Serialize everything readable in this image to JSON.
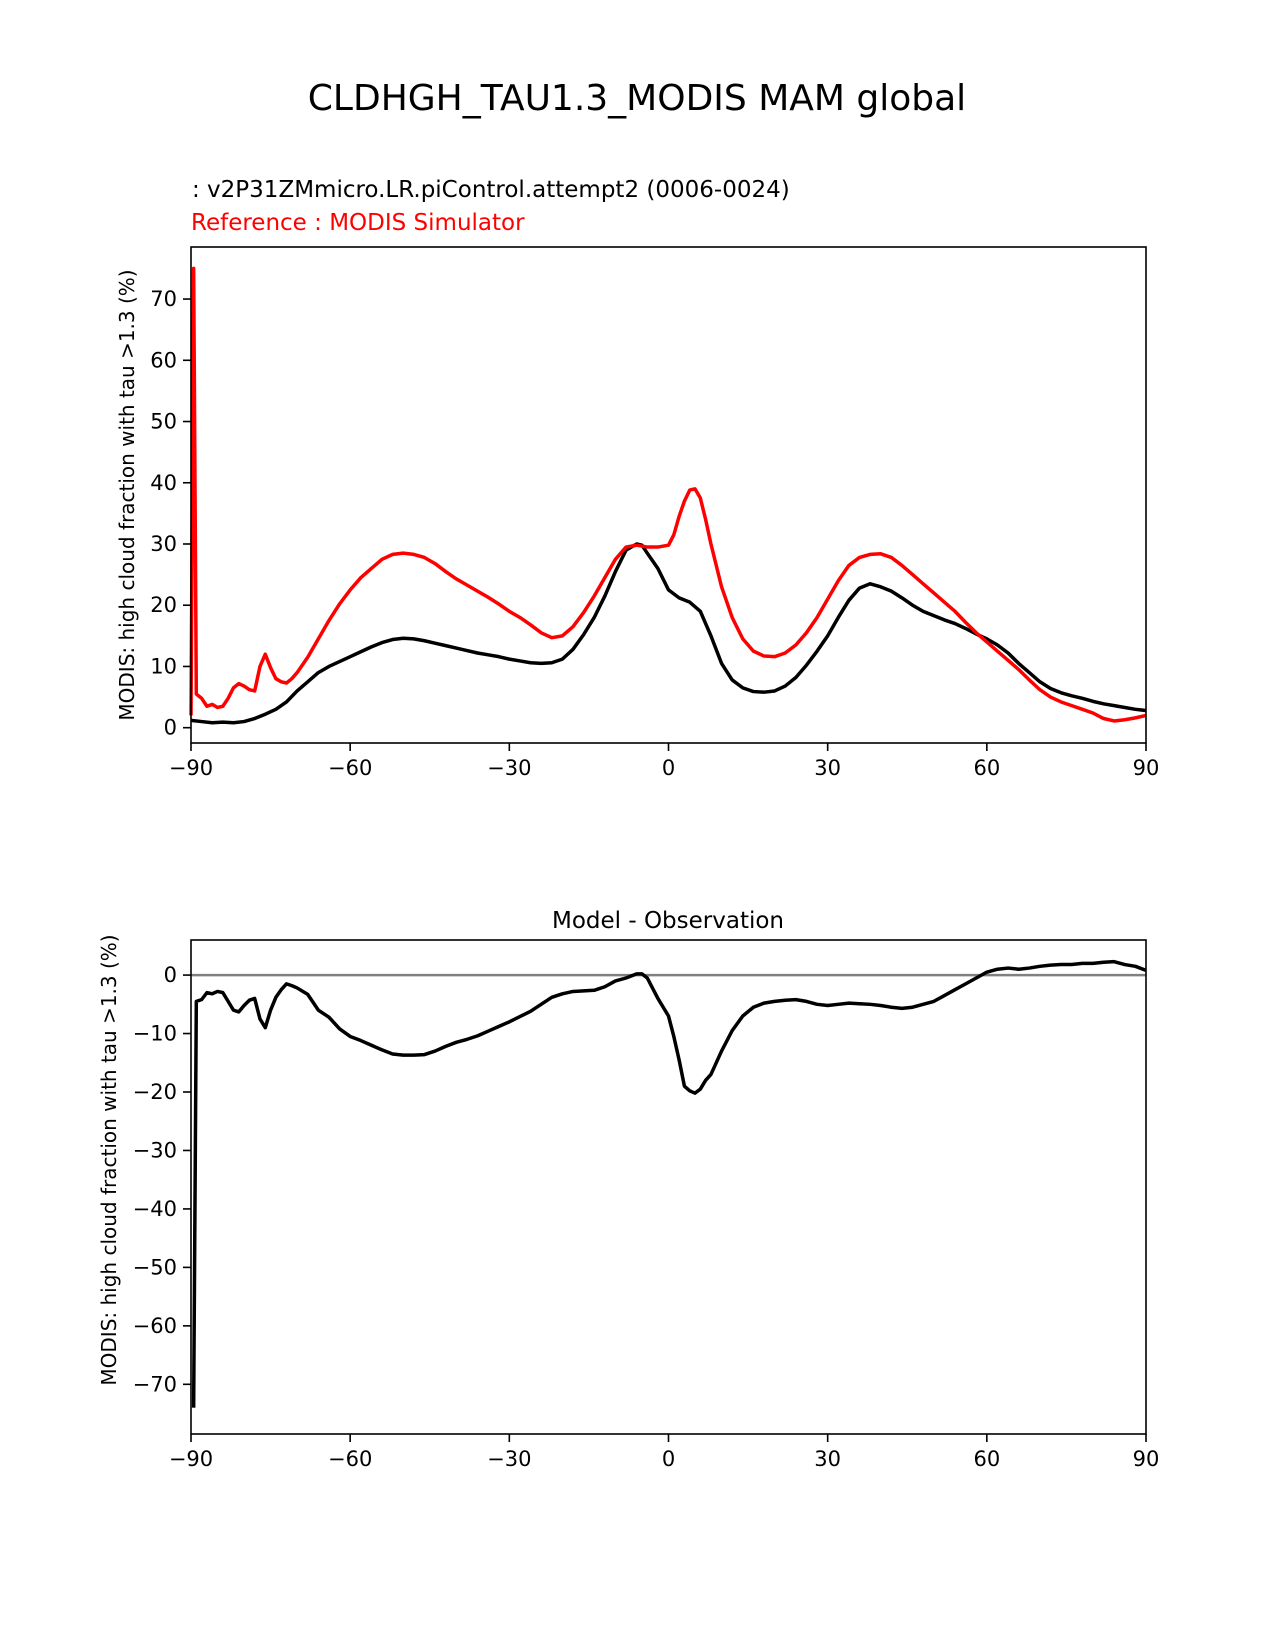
{
  "figure": {
    "suptitle": "CLDHGH_TAU1.3_MODIS MAM global"
  },
  "colors": {
    "model": "#000000",
    "reference": "#ff0000",
    "zero_line": "#808080"
  },
  "chart_data": [
    {
      "type": "line",
      "title": "",
      "test_label": ": v2P31ZMmicro.LR.piControl.attempt2 (0006-0024)",
      "ref_label": "Reference : MODIS Simulator",
      "xlabel": "",
      "ylabel": "MODIS: high cloud fraction with tau >1.3 (%)",
      "xlim": [
        -90,
        90
      ],
      "ylim": [
        -2.5,
        78.5
      ],
      "xticks": [
        -90,
        -60,
        -30,
        0,
        30,
        60,
        90
      ],
      "xtick_labels": [
        "−90",
        "−60",
        "−30",
        "0",
        "30",
        "60",
        "90"
      ],
      "yticks": [
        0,
        10,
        20,
        30,
        40,
        50,
        60,
        70
      ],
      "ytick_labels": [
        "0",
        "10",
        "20",
        "30",
        "40",
        "50",
        "60",
        "70"
      ],
      "grid": false,
      "series": [
        {
          "role": "test",
          "color": "#000000",
          "x": [
            -90,
            -88,
            -86,
            -84,
            -82,
            -80,
            -78,
            -76,
            -74,
            -72,
            -70,
            -68,
            -66,
            -64,
            -62,
            -60,
            -58,
            -56,
            -54,
            -52,
            -50,
            -48,
            -46,
            -44,
            -42,
            -40,
            -38,
            -36,
            -34,
            -32,
            -30,
            -28,
            -26,
            -24,
            -22,
            -20,
            -18,
            -16,
            -14,
            -12,
            -10,
            -8,
            -6,
            -5,
            -4,
            -2,
            0,
            2,
            4,
            6,
            8,
            10,
            12,
            14,
            16,
            18,
            20,
            22,
            24,
            26,
            28,
            30,
            32,
            34,
            36,
            38,
            40,
            42,
            44,
            46,
            48,
            50,
            52,
            54,
            56,
            58,
            60,
            62,
            64,
            66,
            68,
            70,
            72,
            74,
            76,
            78,
            80,
            82,
            84,
            86,
            88,
            90
          ],
          "y": [
            1.2,
            1.0,
            0.8,
            0.9,
            0.8,
            1.0,
            1.5,
            2.2,
            3.0,
            4.2,
            6.0,
            7.5,
            9.0,
            10.0,
            10.8,
            11.6,
            12.4,
            13.2,
            13.9,
            14.4,
            14.6,
            14.5,
            14.2,
            13.8,
            13.4,
            13.0,
            12.6,
            12.2,
            11.9,
            11.6,
            11.2,
            10.9,
            10.6,
            10.5,
            10.6,
            11.2,
            12.8,
            15.2,
            18.0,
            21.5,
            25.5,
            29.0,
            30.0,
            29.8,
            28.5,
            26.0,
            22.5,
            21.2,
            20.5,
            19.0,
            15.0,
            10.5,
            7.8,
            6.5,
            5.9,
            5.8,
            6.0,
            6.8,
            8.2,
            10.2,
            12.5,
            15.0,
            18.0,
            20.8,
            22.8,
            23.5,
            23.0,
            22.3,
            21.2,
            20.0,
            19.0,
            18.3,
            17.6,
            17.0,
            16.2,
            15.3,
            14.5,
            13.5,
            12.2,
            10.5,
            9.0,
            7.5,
            6.4,
            5.7,
            5.2,
            4.8,
            4.3,
            3.9,
            3.6,
            3.3,
            3.0,
            2.8
          ]
        },
        {
          "role": "reference",
          "color": "#ff0000",
          "x": [
            -90,
            -89.5,
            -89,
            -88,
            -87,
            -86,
            -85,
            -84,
            -83,
            -82,
            -81,
            -80,
            -79,
            -78,
            -77,
            -76,
            -75,
            -74,
            -73,
            -72,
            -71,
            -70,
            -68,
            -66,
            -64,
            -62,
            -60,
            -58,
            -56,
            -54,
            -52,
            -50,
            -48,
            -46,
            -44,
            -42,
            -40,
            -38,
            -36,
            -34,
            -32,
            -30,
            -28,
            -26,
            -24,
            -22,
            -20,
            -18,
            -16,
            -14,
            -12,
            -10,
            -8,
            -6,
            -4,
            -2,
            0,
            1,
            2,
            3,
            4,
            5,
            6,
            7,
            8,
            10,
            12,
            14,
            16,
            18,
            20,
            22,
            24,
            26,
            28,
            30,
            32,
            34,
            36,
            38,
            40,
            42,
            44,
            46,
            48,
            50,
            52,
            54,
            56,
            58,
            60,
            62,
            64,
            66,
            68,
            70,
            72,
            74,
            76,
            78,
            80,
            82,
            84,
            86,
            88,
            90
          ],
          "y": [
            2.0,
            75.0,
            5.5,
            4.8,
            3.5,
            3.8,
            3.3,
            3.5,
            4.8,
            6.5,
            7.2,
            6.8,
            6.2,
            6.0,
            10.0,
            12.0,
            9.8,
            8.0,
            7.5,
            7.3,
            8.0,
            9.0,
            11.5,
            14.5,
            17.5,
            20.2,
            22.5,
            24.5,
            26.0,
            27.5,
            28.3,
            28.5,
            28.3,
            27.8,
            26.8,
            25.5,
            24.3,
            23.3,
            22.3,
            21.3,
            20.2,
            19.0,
            18.0,
            16.8,
            15.5,
            14.7,
            15.0,
            16.5,
            18.8,
            21.5,
            24.5,
            27.5,
            29.5,
            29.8,
            29.5,
            29.5,
            29.8,
            31.5,
            34.5,
            37.0,
            38.8,
            39.0,
            37.5,
            34.0,
            30.0,
            23.0,
            18.0,
            14.5,
            12.5,
            11.7,
            11.6,
            12.2,
            13.5,
            15.5,
            18.0,
            21.0,
            24.0,
            26.5,
            27.8,
            28.3,
            28.4,
            27.8,
            26.5,
            25.0,
            23.5,
            22.0,
            20.5,
            19.0,
            17.2,
            15.5,
            14.0,
            12.5,
            11.0,
            9.5,
            7.8,
            6.2,
            5.0,
            4.2,
            3.6,
            3.0,
            2.4,
            1.5,
            1.1,
            1.3,
            1.6,
            2.0
          ]
        }
      ]
    },
    {
      "type": "line",
      "title": "Model - Observation",
      "xlabel": "",
      "ylabel": "MODIS: high cloud fraction with tau >1.3 (%)",
      "xlim": [
        -90,
        90
      ],
      "ylim": [
        -78.5,
        6.0
      ],
      "xticks": [
        -90,
        -60,
        -30,
        0,
        30,
        60,
        90
      ],
      "xtick_labels": [
        "−90",
        "−60",
        "−30",
        "0",
        "30",
        "60",
        "90"
      ],
      "yticks": [
        0,
        -10,
        -20,
        -30,
        -40,
        -50,
        -60,
        -70
      ],
      "ytick_labels": [
        "0",
        "−10",
        "−20",
        "−30",
        "−40",
        "−50",
        "−60",
        "−70"
      ],
      "zero_line": 0,
      "grid": false,
      "series": [
        {
          "role": "difference",
          "color": "#000000",
          "x": [
            -89.5,
            -89,
            -88,
            -87,
            -86,
            -85,
            -84,
            -83,
            -82,
            -81,
            -80,
            -79,
            -78,
            -77,
            -76,
            -75,
            -74,
            -73,
            -72,
            -71,
            -70,
            -68,
            -66,
            -64,
            -62,
            -60,
            -58,
            -56,
            -54,
            -52,
            -50,
            -48,
            -46,
            -44,
            -42,
            -40,
            -38,
            -36,
            -34,
            -32,
            -30,
            -28,
            -26,
            -24,
            -22,
            -20,
            -18,
            -16,
            -14,
            -12,
            -10,
            -8,
            -6,
            -5,
            -4,
            -2,
            0,
            1,
            2,
            3,
            4,
            5,
            6,
            7,
            8,
            10,
            12,
            14,
            16,
            18,
            20,
            22,
            24,
            26,
            28,
            30,
            32,
            34,
            36,
            38,
            40,
            42,
            44,
            46,
            48,
            50,
            52,
            54,
            56,
            58,
            60,
            62,
            64,
            66,
            68,
            70,
            72,
            74,
            76,
            78,
            80,
            82,
            84,
            86,
            88,
            90
          ],
          "y": [
            -74.0,
            -4.5,
            -4.2,
            -3.0,
            -3.2,
            -2.8,
            -3.0,
            -4.5,
            -6.0,
            -6.3,
            -5.2,
            -4.3,
            -4.0,
            -7.5,
            -9.0,
            -6.0,
            -3.8,
            -2.5,
            -1.5,
            -1.8,
            -2.2,
            -3.3,
            -6.0,
            -7.2,
            -9.2,
            -10.5,
            -11.2,
            -12.0,
            -12.8,
            -13.5,
            -13.7,
            -13.7,
            -13.6,
            -13.0,
            -12.2,
            -11.5,
            -11.0,
            -10.4,
            -9.6,
            -8.8,
            -8.0,
            -7.1,
            -6.2,
            -5.0,
            -3.8,
            -3.2,
            -2.8,
            -2.7,
            -2.6,
            -2.0,
            -1.0,
            -0.5,
            0.2,
            0.2,
            -0.5,
            -4.0,
            -7.0,
            -10.5,
            -14.5,
            -19.0,
            -19.8,
            -20.2,
            -19.5,
            -18.0,
            -17.0,
            -13.0,
            -9.5,
            -7.0,
            -5.5,
            -4.8,
            -4.5,
            -4.3,
            -4.2,
            -4.5,
            -5.0,
            -5.2,
            -5.0,
            -4.8,
            -4.9,
            -5.0,
            -5.2,
            -5.5,
            -5.7,
            -5.5,
            -5.0,
            -4.5,
            -3.5,
            -2.5,
            -1.5,
            -0.5,
            0.5,
            1.0,
            1.2,
            1.0,
            1.2,
            1.5,
            1.7,
            1.8,
            1.8,
            2.0,
            2.0,
            2.2,
            2.3,
            1.8,
            1.5,
            0.8
          ]
        }
      ]
    }
  ]
}
